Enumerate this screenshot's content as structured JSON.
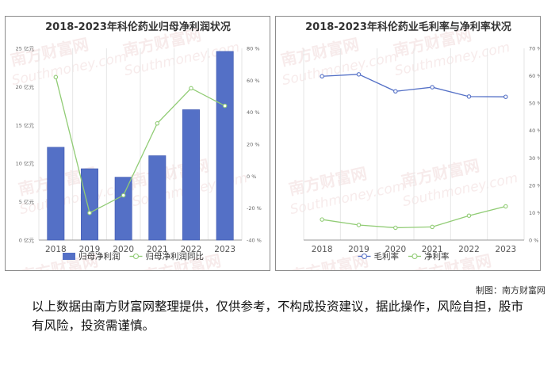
{
  "footer": {
    "credit": "制图：南方财富网",
    "disclaimer": "以上数据由南方财富网整理提供，仅供参考，不构成投资建议，据此操作，风险自担，股市有风险，投资需谨慎。"
  },
  "watermark": {
    "text": "南方财富网",
    "latin": "Southmoney.com"
  },
  "colors": {
    "bar": "#5470c6",
    "bar_border": "#3f58b0",
    "line_green": "#91cc75",
    "line_blue": "#5470c6",
    "axis": "#999999",
    "text": "#666666"
  },
  "chart_data": [
    {
      "type": "bar",
      "title": "2018-2023年科伦药业归母净利润状况",
      "categories": [
        "2018",
        "2019",
        "2020",
        "2021",
        "2022",
        "2023"
      ],
      "series": [
        {
          "name": "归母净利润",
          "type": "bar",
          "axis": "left",
          "values": [
            12.1,
            9.3,
            8.2,
            11.0,
            17.0,
            24.6
          ]
        },
        {
          "name": "归母净利润同比",
          "type": "line",
          "axis": "right",
          "values": [
            62,
            -23,
            -12,
            33,
            55,
            44
          ]
        }
      ],
      "y_left": {
        "min": 0,
        "max": 25,
        "ticks": [
          "0 亿元",
          "5 亿元",
          "10 亿元",
          "15 亿元",
          "20 亿元",
          "25 亿元"
        ]
      },
      "y_right": {
        "min": -40,
        "max": 80,
        "ticks": [
          "-40 %",
          "-20 %",
          "0 %",
          "20 %",
          "40 %",
          "60 %",
          "80 %"
        ]
      },
      "legend_position": "bottom-center",
      "grid": "vertical"
    },
    {
      "type": "line",
      "title": "2018-2023年科伦药业毛利率与净利率状况",
      "categories": [
        "2018",
        "2019",
        "2020",
        "2021",
        "2022",
        "2023"
      ],
      "series": [
        {
          "name": "毛利率",
          "values": [
            59.8,
            60.5,
            54.3,
            55.8,
            52.4,
            52.3
          ]
        },
        {
          "name": "净利率",
          "values": [
            7.5,
            5.5,
            4.5,
            4.8,
            8.9,
            12.3
          ]
        }
      ],
      "y_right": {
        "min": 0,
        "max": 70,
        "ticks": [
          "0 %",
          "10 %",
          "20 %",
          "30 %",
          "40 %",
          "50 %",
          "60 %",
          "70 %"
        ]
      },
      "legend_position": "bottom-center",
      "grid": "vertical"
    }
  ]
}
